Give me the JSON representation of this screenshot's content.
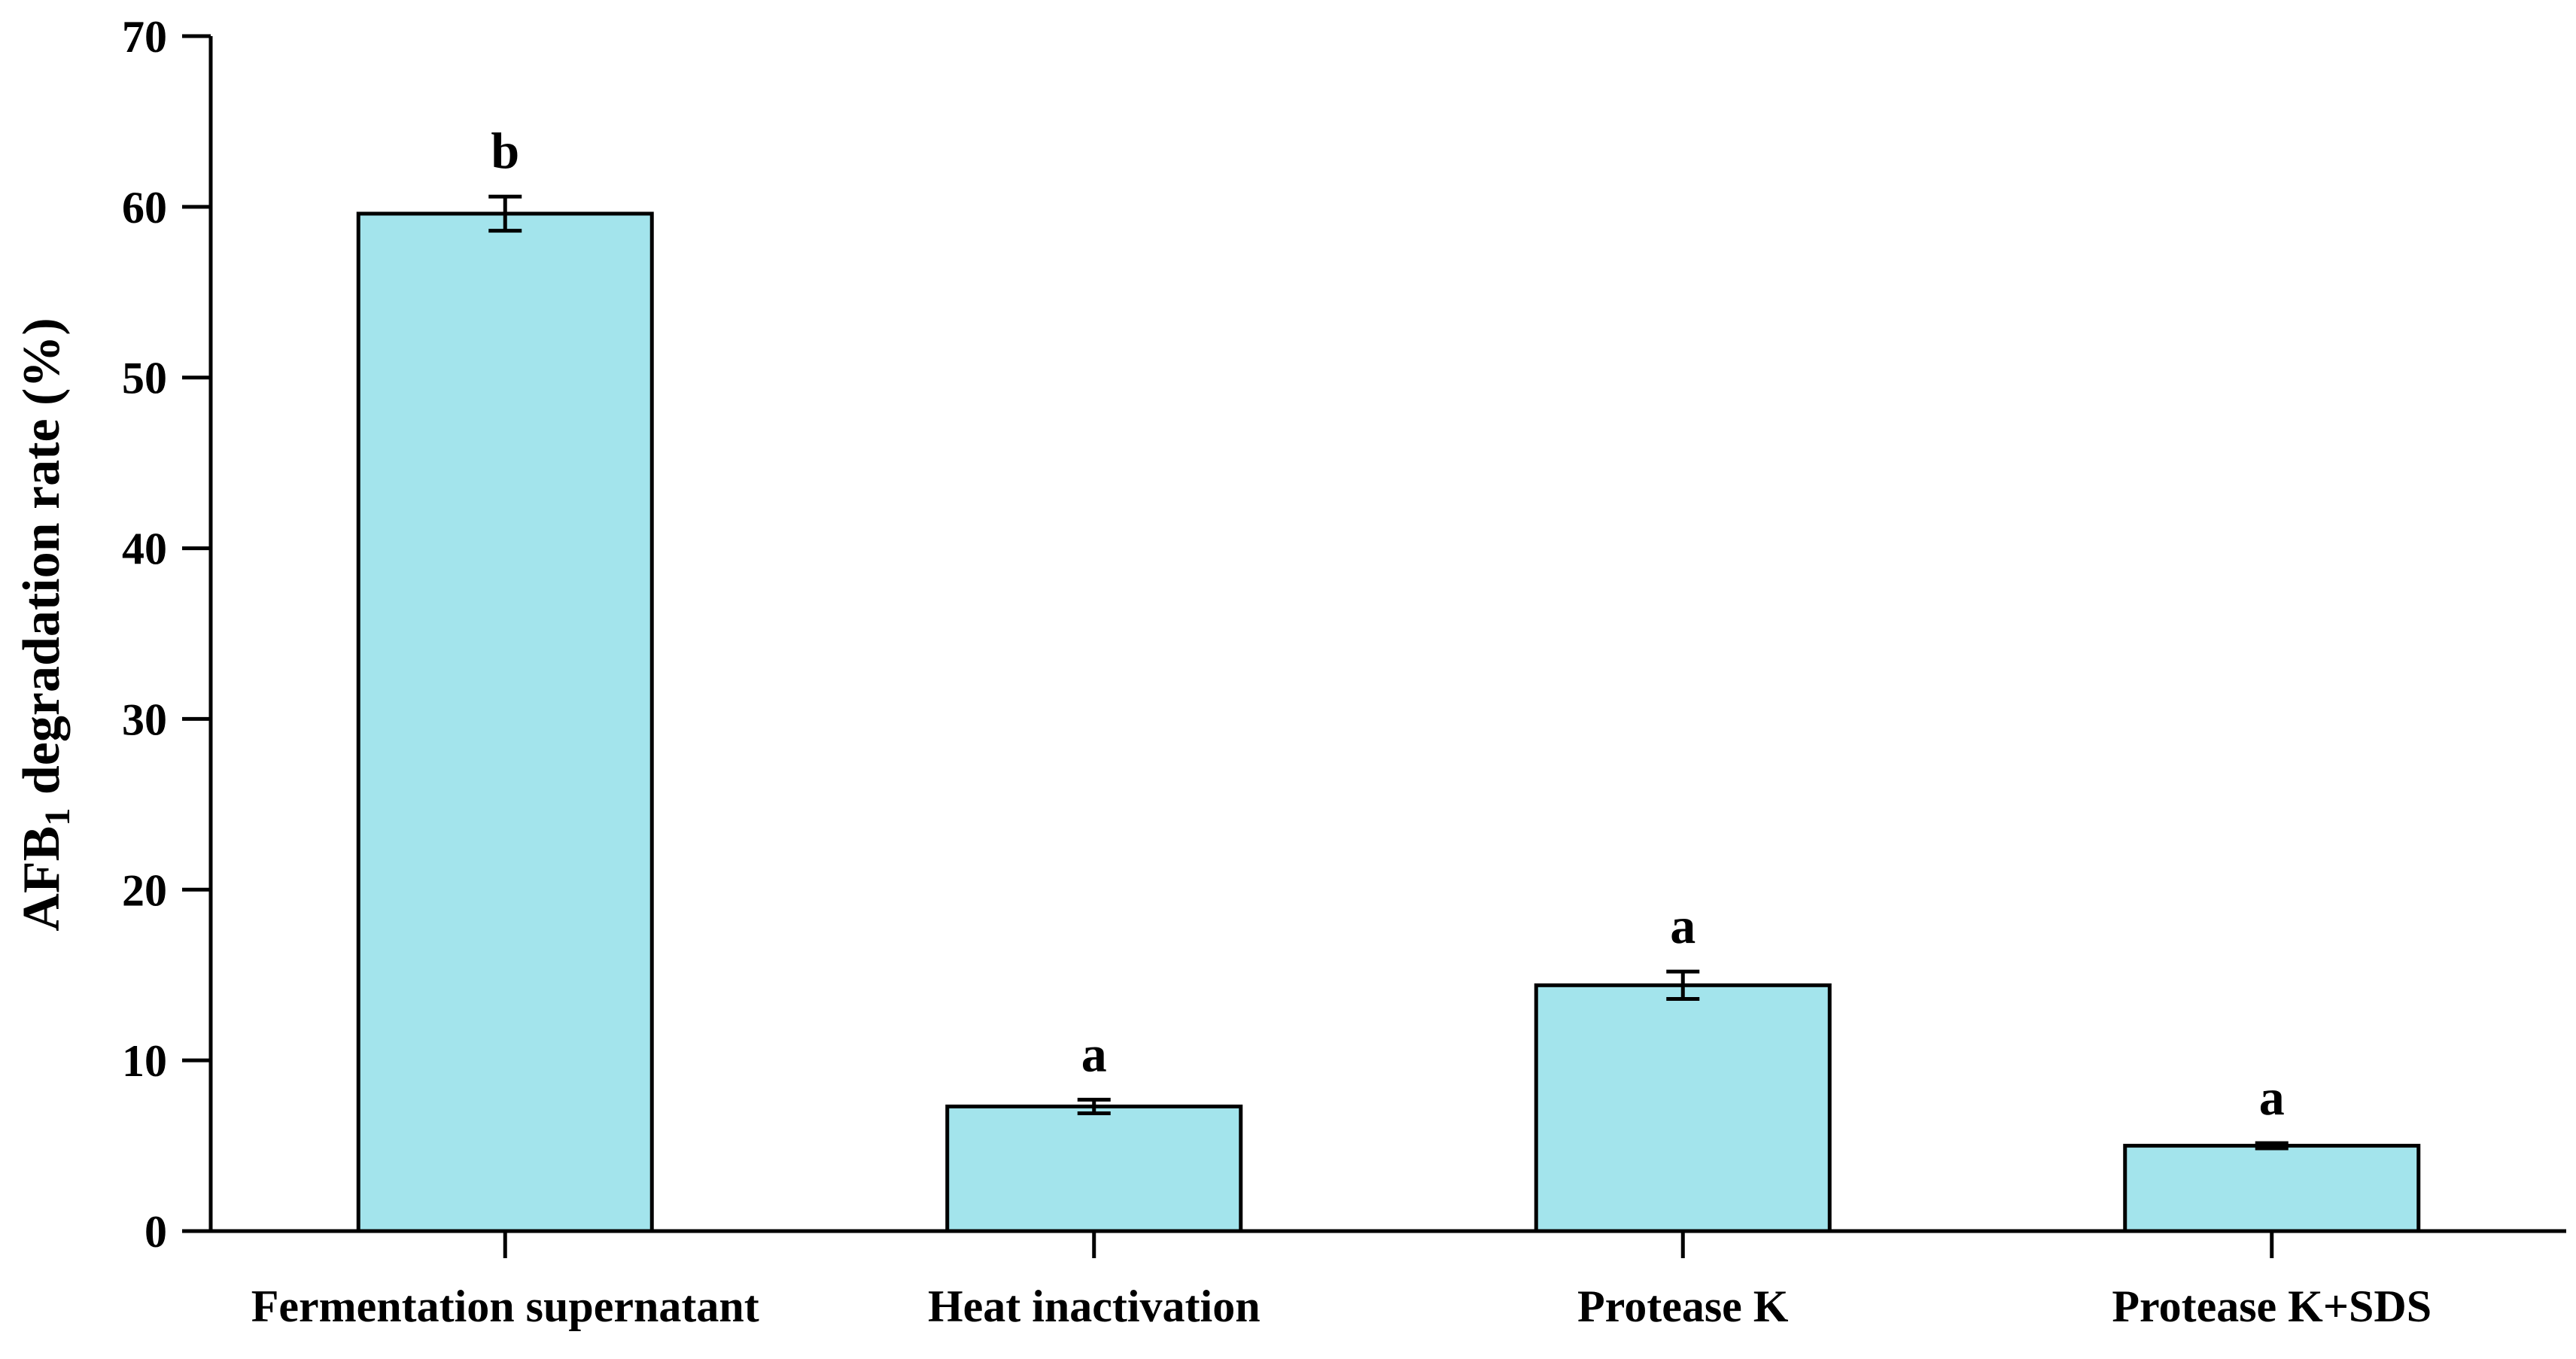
{
  "chart_data": {
    "type": "bar",
    "categories": [
      "Fermentation supernatant",
      "Heat inactivation",
      "Protease K",
      "Protease K+SDS"
    ],
    "series": [
      {
        "values": [
          59.6,
          7.3,
          14.4,
          5.0
        ],
        "errors": [
          1.0,
          0.4,
          0.8,
          0.15
        ],
        "significance": [
          "b",
          "a",
          "a",
          "a"
        ]
      }
    ],
    "ylabel_parts": {
      "prefix": "AFB",
      "subscript": "1",
      "suffix": " degradation rate (%)"
    },
    "ylim": [
      0,
      70
    ],
    "yticks": [
      0,
      10,
      20,
      30,
      40,
      50,
      60,
      70
    ],
    "grid": false,
    "legend": "none",
    "colors": {
      "bar_fill": "#a3e4ec",
      "bar_stroke": "#000000",
      "axis": "#000000"
    }
  }
}
